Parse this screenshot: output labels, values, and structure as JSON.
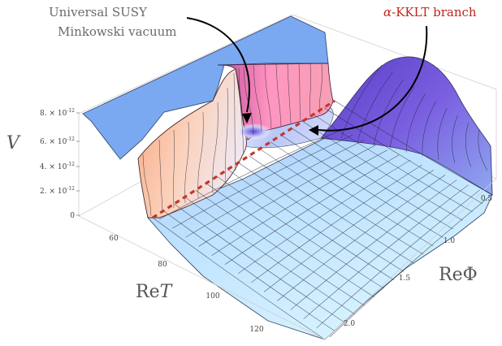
{
  "chart_data": {
    "type": "surface3d",
    "title": "",
    "zlabel": "V",
    "xlabel": "ReT",
    "ylabel": "ReΦ",
    "z_ticks": [
      {
        "mant": "8.",
        "exp": "-12"
      },
      {
        "mant": "6.",
        "exp": "-12"
      },
      {
        "mant": "4.",
        "exp": "-12"
      },
      {
        "mant": "2.",
        "exp": "-12"
      },
      {
        "mant": "0",
        "exp": ""
      }
    ],
    "x_ticks": [
      "60",
      "80",
      "100",
      "120"
    ],
    "y_ticks": [
      "0.5",
      "1.0",
      "1.5",
      "2.0"
    ],
    "xlim": [
      45,
      130
    ],
    "ylim": [
      0.3,
      2.2
    ],
    "zlim": [
      0,
      8.5e-12
    ],
    "surface_features": [
      {
        "label": "Universal SUSY Minkowski vacuum",
        "ReT": 75,
        "RePhi": 0.9,
        "V": 4.5e-12
      },
      {
        "label": "α-KKLT branch",
        "ReT_range": [
          48,
          128
        ],
        "V": 0
      }
    ],
    "colors": {
      "cap": "#78a8f4",
      "low": "#bfe6ff",
      "wall": "#f3b090",
      "peak": "#ff9cc4",
      "ridge": "#6b3fc9",
      "branch_line": "#c0392b",
      "annotation_red": "#c0251e",
      "annotation_gray": "#666666"
    }
  },
  "annotations": {
    "susy_line1": "Universal SUSY",
    "susy_line2": "Minkowski vacuum",
    "kklt_prefix": "α",
    "kklt_text": "-KKLT branch"
  }
}
